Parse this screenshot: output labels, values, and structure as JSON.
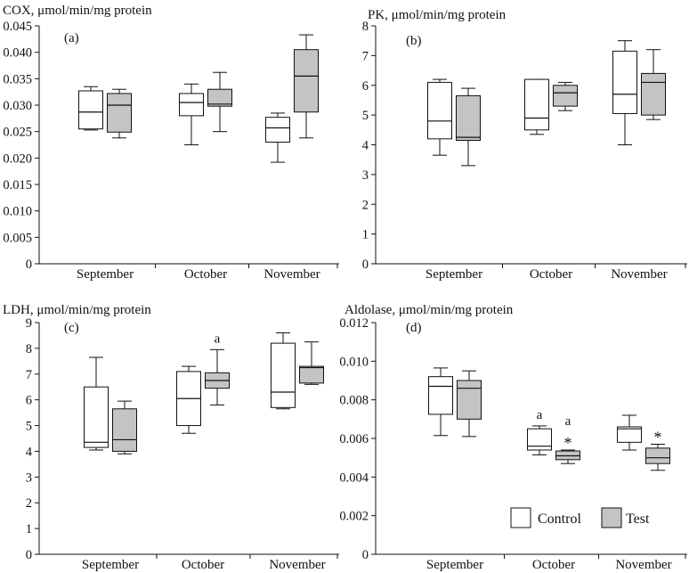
{
  "legend": {
    "control_label": "Control",
    "test_label": "Test",
    "control_color": "#ffffff",
    "test_color": "#c4c4c4"
  },
  "chart_data": [
    {
      "type": "boxplot",
      "panel_label": "(a)",
      "title": "COX, μmol/min/mg protein",
      "categories": [
        "September",
        "October",
        "November"
      ],
      "ylim": [
        0,
        0.045
      ],
      "yticks": [
        0,
        0.005,
        0.01,
        0.015,
        0.02,
        0.025,
        0.03,
        0.035,
        0.04,
        0.045
      ],
      "ytick_labels": [
        "0",
        "0.005",
        "0.010",
        "0.015",
        "0.020",
        "0.025",
        "0.030",
        "0.035",
        "0.040",
        "0.045"
      ],
      "series": [
        {
          "name": "Control",
          "boxes": [
            {
              "min": 0.0253,
              "q1": 0.0255,
              "median": 0.0287,
              "q3": 0.0327,
              "max": 0.0335,
              "annot": ""
            },
            {
              "min": 0.0225,
              "q1": 0.028,
              "median": 0.0305,
              "q3": 0.0322,
              "max": 0.034,
              "annot": ""
            },
            {
              "min": 0.0192,
              "q1": 0.023,
              "median": 0.0257,
              "q3": 0.0277,
              "max": 0.0285,
              "annot": ""
            }
          ]
        },
        {
          "name": "Test",
          "boxes": [
            {
              "min": 0.0238,
              "q1": 0.0249,
              "median": 0.03,
              "q3": 0.0322,
              "max": 0.033,
              "annot": ""
            },
            {
              "min": 0.025,
              "q1": 0.0298,
              "median": 0.0302,
              "q3": 0.033,
              "max": 0.0362,
              "annot": ""
            },
            {
              "min": 0.0238,
              "q1": 0.0287,
              "median": 0.0355,
              "q3": 0.0405,
              "max": 0.0433,
              "annot": ""
            }
          ]
        }
      ]
    },
    {
      "type": "boxplot",
      "panel_label": "(b)",
      "title": "PK, μmol/min/mg protein",
      "categories": [
        "September",
        "October",
        "November"
      ],
      "ylim": [
        0,
        8
      ],
      "yticks": [
        0,
        1,
        2,
        3,
        4,
        5,
        6,
        7,
        8
      ],
      "ytick_labels": [
        "0",
        "1",
        "2",
        "3",
        "4",
        "5",
        "6",
        "7",
        "8"
      ],
      "series": [
        {
          "name": "Control",
          "boxes": [
            {
              "min": 3.65,
              "q1": 4.2,
              "median": 4.8,
              "q3": 6.1,
              "max": 6.2,
              "annot": ""
            },
            {
              "min": 4.35,
              "q1": 4.5,
              "median": 4.9,
              "q3": 6.2,
              "max": 6.2,
              "annot": ""
            },
            {
              "min": 4.0,
              "q1": 5.05,
              "median": 5.7,
              "q3": 7.15,
              "max": 7.5,
              "annot": ""
            }
          ]
        },
        {
          "name": "Test",
          "boxes": [
            {
              "min": 3.3,
              "q1": 4.15,
              "median": 4.25,
              "q3": 5.65,
              "max": 5.9,
              "annot": ""
            },
            {
              "min": 5.15,
              "q1": 5.3,
              "median": 5.75,
              "q3": 6.0,
              "max": 6.1,
              "annot": ""
            },
            {
              "min": 4.85,
              "q1": 5.0,
              "median": 6.1,
              "q3": 6.4,
              "max": 7.2,
              "annot": ""
            }
          ]
        }
      ]
    },
    {
      "type": "boxplot",
      "panel_label": "(c)",
      "title": "LDH, μmol/min/mg protein",
      "categories": [
        "September",
        "October",
        "November"
      ],
      "ylim": [
        0,
        9
      ],
      "yticks": [
        0,
        1,
        2,
        3,
        4,
        5,
        6,
        7,
        8,
        9
      ],
      "ytick_labels": [
        "0",
        "1",
        "2",
        "3",
        "4",
        "5",
        "6",
        "7",
        "8",
        "9"
      ],
      "series": [
        {
          "name": "Control",
          "boxes": [
            {
              "min": 4.05,
              "q1": 4.15,
              "median": 4.35,
              "q3": 6.5,
              "max": 7.65,
              "annot": ""
            },
            {
              "min": 4.7,
              "q1": 5.0,
              "median": 6.05,
              "q3": 7.1,
              "max": 7.3,
              "annot": ""
            },
            {
              "min": 5.65,
              "q1": 5.7,
              "median": 6.3,
              "q3": 8.2,
              "max": 8.6,
              "annot": ""
            }
          ]
        },
        {
          "name": "Test",
          "boxes": [
            {
              "min": 3.9,
              "q1": 4.0,
              "median": 4.45,
              "q3": 5.65,
              "max": 5.95,
              "annot": ""
            },
            {
              "min": 5.8,
              "q1": 6.45,
              "median": 6.75,
              "q3": 7.05,
              "max": 7.95,
              "annot": "a"
            },
            {
              "min": 6.6,
              "q1": 6.65,
              "median": 7.25,
              "q3": 7.3,
              "max": 8.25,
              "annot": ""
            }
          ]
        }
      ]
    },
    {
      "type": "boxplot",
      "panel_label": "(d)",
      "title": "Aldolase, μmol/min/mg protein",
      "categories": [
        "September",
        "October",
        "November"
      ],
      "ylim": [
        0,
        0.012
      ],
      "yticks": [
        0,
        0.002,
        0.004,
        0.006,
        0.008,
        0.01,
        0.012
      ],
      "ytick_labels": [
        "0",
        "0.002",
        "0.004",
        "0.006",
        "0.008",
        "0.010",
        "0.012"
      ],
      "series": [
        {
          "name": "Control",
          "boxes": [
            {
              "min": 0.00615,
              "q1": 0.00725,
              "median": 0.0087,
              "q3": 0.0092,
              "max": 0.00965,
              "annot": ""
            },
            {
              "min": 0.00515,
              "q1": 0.0054,
              "median": 0.0056,
              "q3": 0.0065,
              "max": 0.00665,
              "annot": "a"
            },
            {
              "min": 0.0054,
              "q1": 0.0058,
              "median": 0.0065,
              "q3": 0.0066,
              "max": 0.0072,
              "annot": ""
            }
          ]
        },
        {
          "name": "Test",
          "boxes": [
            {
              "min": 0.0061,
              "q1": 0.007,
              "median": 0.0086,
              "q3": 0.009,
              "max": 0.0095,
              "annot": ""
            },
            {
              "min": 0.0047,
              "q1": 0.0049,
              "median": 0.0051,
              "q3": 0.00535,
              "max": 0.0054,
              "annot": "a\n*"
            },
            {
              "min": 0.00435,
              "q1": 0.0047,
              "median": 0.005,
              "q3": 0.0055,
              "max": 0.0057,
              "annot": "*"
            }
          ]
        }
      ]
    }
  ]
}
